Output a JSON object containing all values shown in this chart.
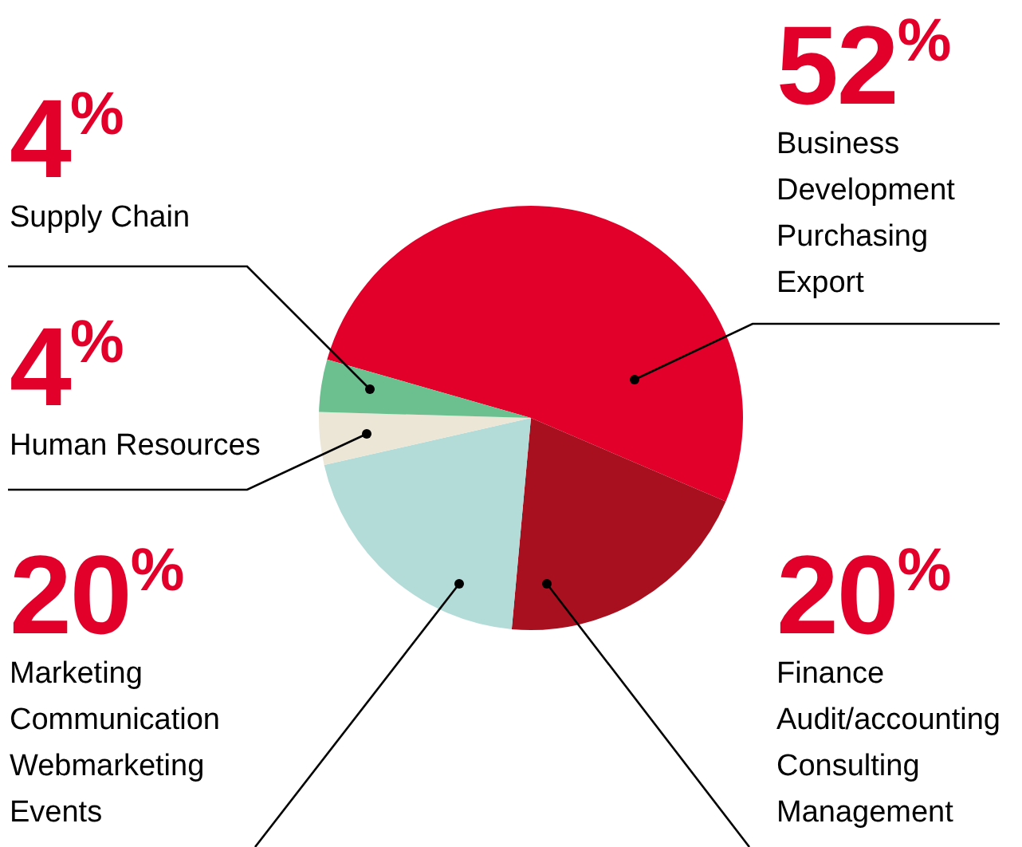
{
  "chart_data": {
    "type": "pie",
    "categories": [
      "Business\nDevelopment\nPurchasing\nExport",
      "Finance\nAudit/accounting\nConsulting\nManagement",
      "Marketing\nCommunication\nWebmarketing\nEvents",
      "Human Resources",
      "Supply Chain"
    ],
    "values": [
      52,
      20,
      20,
      4,
      4
    ],
    "colors": [
      "#e2002a",
      "#a8101f",
      "#b3dcd9",
      "#ece6d6",
      "#6cbf8f"
    ],
    "value_labels": [
      "52%",
      "20%",
      "20%",
      "4%",
      "4%"
    ],
    "legend": false
  }
}
